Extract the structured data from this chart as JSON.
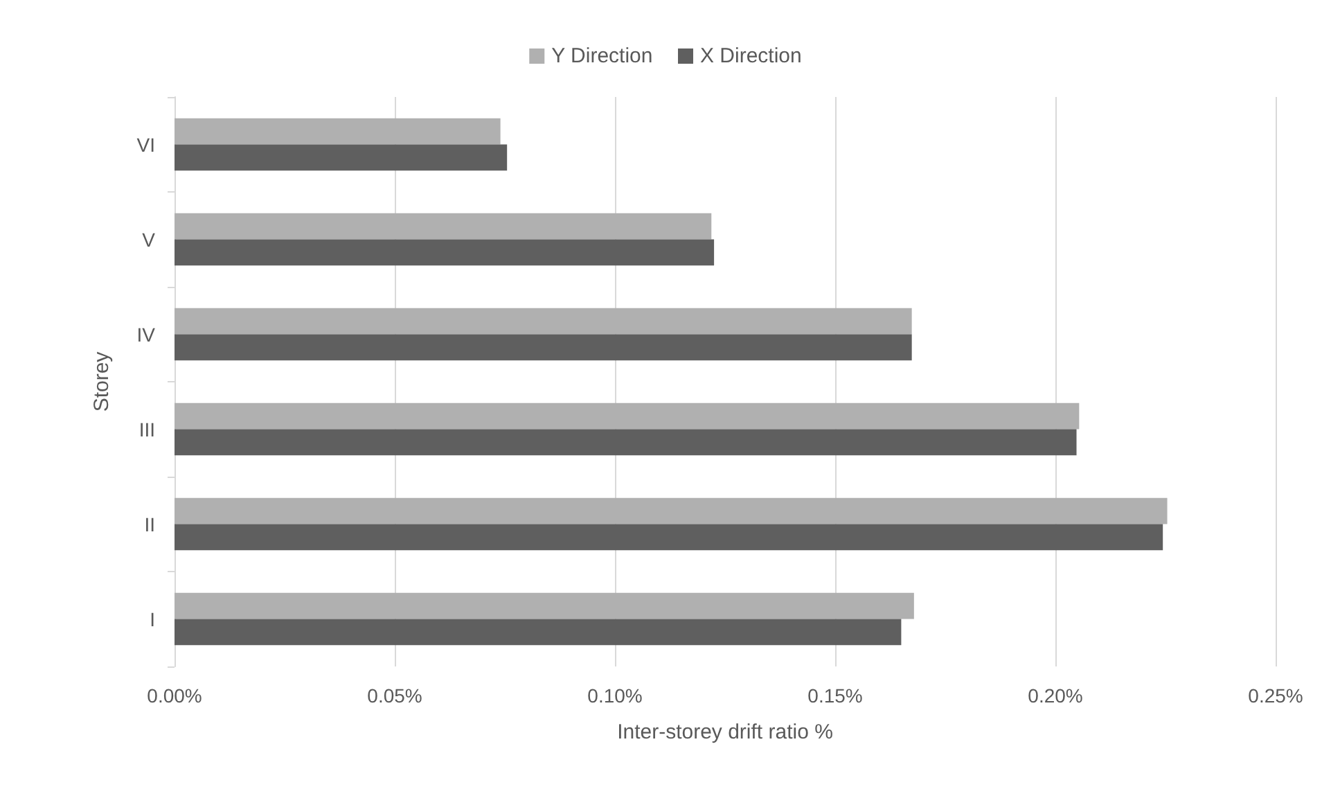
{
  "chart_data": {
    "type": "bar",
    "orientation": "horizontal",
    "xlabel": "Inter-storey drift ratio %",
    "ylabel": "Storey",
    "categories": [
      "VI",
      "V",
      "IV",
      "III",
      "II",
      "I"
    ],
    "series": [
      {
        "name": "Y Direction",
        "color": "#b0b0b0",
        "values": [
          0.074,
          0.1219,
          0.1674,
          0.2054,
          0.2254,
          0.1679
        ]
      },
      {
        "name": "X Direction",
        "color": "#5f5f5f",
        "values": [
          0.0755,
          0.1225,
          0.1674,
          0.2048,
          0.2244,
          0.165
        ]
      }
    ],
    "xlim": [
      0,
      0.25
    ],
    "xticks": [
      {
        "value": 0,
        "label": "0.00%"
      },
      {
        "value": 0.05,
        "label": "0.05%"
      },
      {
        "value": 0.1,
        "label": "0.10%"
      },
      {
        "value": 0.15,
        "label": "0.15%"
      },
      {
        "value": 0.2,
        "label": "0.20%"
      },
      {
        "value": 0.25,
        "label": "0.25%"
      }
    ],
    "grid": "x",
    "legend": "top"
  }
}
